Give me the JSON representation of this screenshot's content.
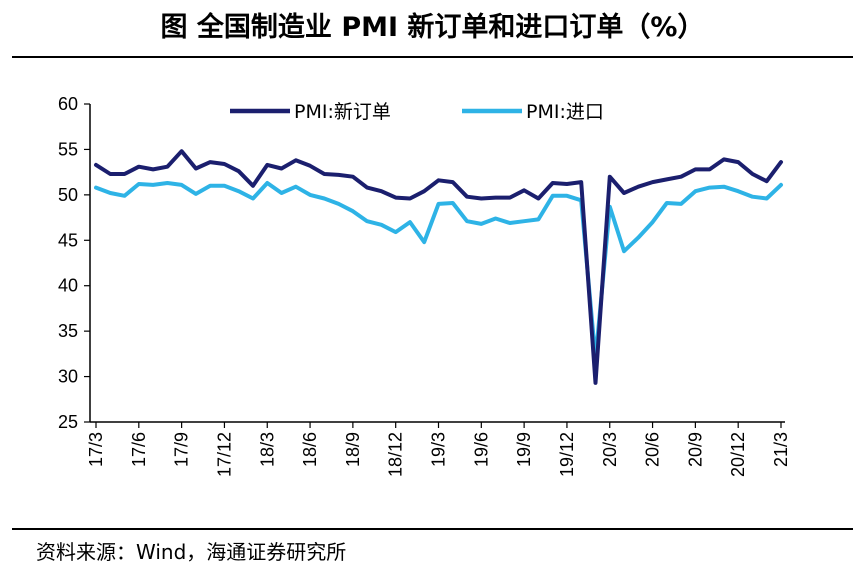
{
  "title": "图  全国制造业 PMI 新订单和进口订单（%）",
  "source": "资料来源：Wind，海通证券研究所",
  "chart_data": {
    "type": "line",
    "y_ticks": [
      "60",
      "55",
      "50",
      "45",
      "40",
      "35",
      "30",
      "25"
    ],
    "ylim": [
      25,
      60
    ],
    "legend_placement": "top",
    "grid": false,
    "x_tick_labels": [
      {
        "label": "17/3",
        "index": 0
      },
      {
        "label": "17/6",
        "index": 3
      },
      {
        "label": "17/9",
        "index": 6
      },
      {
        "label": "17/12",
        "index": 9
      },
      {
        "label": "18/3",
        "index": 12
      },
      {
        "label": "18/6",
        "index": 15
      },
      {
        "label": "18/9",
        "index": 18
      },
      {
        "label": "18/12",
        "index": 21
      },
      {
        "label": "19/3",
        "index": 24
      },
      {
        "label": "19/6",
        "index": 27
      },
      {
        "label": "19/9",
        "index": 30
      },
      {
        "label": "19/12",
        "index": 33
      },
      {
        "label": "20/3",
        "index": 36
      },
      {
        "label": "20/6",
        "index": 39
      },
      {
        "label": "20/9",
        "index": 42
      },
      {
        "label": "20/12",
        "index": 45
      },
      {
        "label": "21/3",
        "index": 48
      }
    ],
    "series": [
      {
        "name": "PMI:新订单",
        "color": "#1b1f6e",
        "values": [
          53.3,
          52.3,
          52.3,
          53.1,
          52.8,
          53.1,
          54.8,
          52.9,
          53.6,
          53.4,
          52.6,
          51.0,
          53.3,
          52.9,
          53.8,
          53.2,
          52.3,
          52.2,
          52.0,
          50.8,
          50.4,
          49.7,
          49.6,
          50.4,
          51.6,
          51.4,
          49.8,
          49.6,
          49.7,
          49.7,
          50.5,
          49.6,
          51.3,
          51.2,
          51.4,
          29.3,
          52.0,
          50.2,
          50.9,
          51.4,
          51.7,
          52.0,
          52.8,
          52.8,
          53.9,
          53.6,
          52.3,
          51.5,
          53.6
        ]
      },
      {
        "name": "PMI:进口",
        "color": "#2eb3e6",
        "values": [
          50.8,
          50.2,
          49.9,
          51.2,
          51.1,
          51.3,
          51.1,
          50.1,
          51.0,
          51.0,
          50.4,
          49.6,
          51.3,
          50.2,
          50.9,
          50.0,
          49.6,
          49.0,
          48.2,
          47.1,
          46.7,
          45.9,
          47.0,
          44.8,
          49.0,
          49.1,
          47.1,
          46.8,
          47.4,
          46.9,
          47.1,
          47.3,
          49.9,
          49.9,
          49.4,
          31.9,
          48.7,
          43.8,
          45.3,
          47.0,
          49.1,
          49.0,
          50.4,
          50.8,
          50.9,
          50.4,
          49.8,
          49.6,
          51.1
        ]
      }
    ]
  }
}
